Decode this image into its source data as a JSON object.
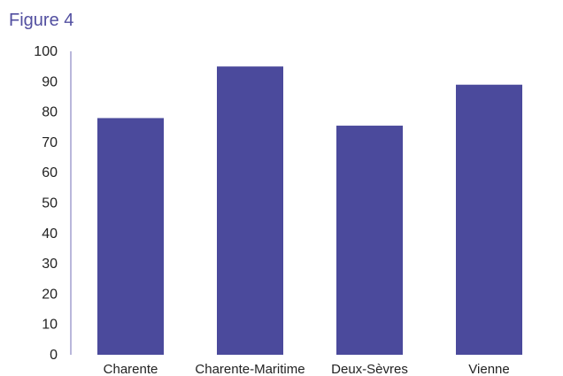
{
  "figure_label": "Figure 4",
  "colors": {
    "bar": "#4b4a9c",
    "axis": "#b9b7db",
    "title": "#524fa0"
  },
  "chart_data": {
    "type": "bar",
    "title": "",
    "xlabel": "",
    "ylabel": "",
    "categories": [
      "Charente",
      "Charente-Maritime",
      "Deux-Sèvres",
      "Vienne"
    ],
    "values": [
      78,
      95,
      75.5,
      89
    ],
    "ylim": [
      0,
      100
    ],
    "yticks": [
      0,
      10,
      20,
      30,
      40,
      50,
      60,
      70,
      80,
      90,
      100
    ],
    "grid": false,
    "legend": "none"
  }
}
